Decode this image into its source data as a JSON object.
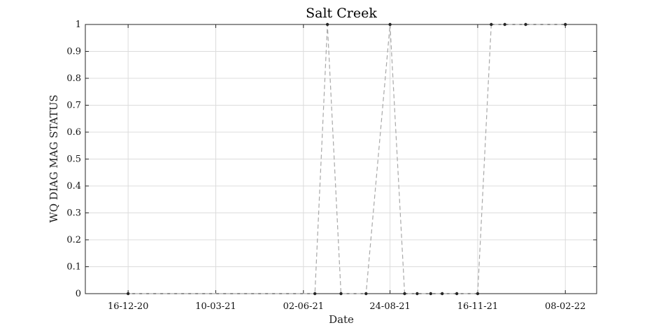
{
  "chart_data": {
    "type": "line",
    "title": "Salt Creek",
    "xlabel": "Date",
    "ylabel": "WQ DIAG MAG STATUS",
    "x_ticks": [
      "16-12-20",
      "10-03-21",
      "02-06-21",
      "24-08-21",
      "16-11-21",
      "08-02-22"
    ],
    "y_ticks": [
      "0",
      "0.1",
      "0.2",
      "0.3",
      "0.4",
      "0.5",
      "0.6",
      "0.7",
      "0.8",
      "0.9",
      "1"
    ],
    "xlim": [
      "2020-11-05",
      "2022-03-10"
    ],
    "ylim": [
      0,
      1
    ],
    "grid": true,
    "series": [
      {
        "x": [
          "2020-12-16",
          "2021-06-13",
          "2021-06-25",
          "2021-07-08",
          "2021-08-01",
          "2021-08-24",
          "2021-09-07",
          "2021-09-19",
          "2021-10-02",
          "2021-10-13",
          "2021-10-27",
          "2021-11-16",
          "2021-11-29",
          "2021-12-12",
          "2022-01-01",
          "2022-02-08"
        ],
        "y": [
          0,
          0,
          1,
          0,
          0,
          1,
          0,
          0,
          0,
          0,
          0,
          0,
          1,
          1,
          1,
          1
        ]
      }
    ]
  }
}
